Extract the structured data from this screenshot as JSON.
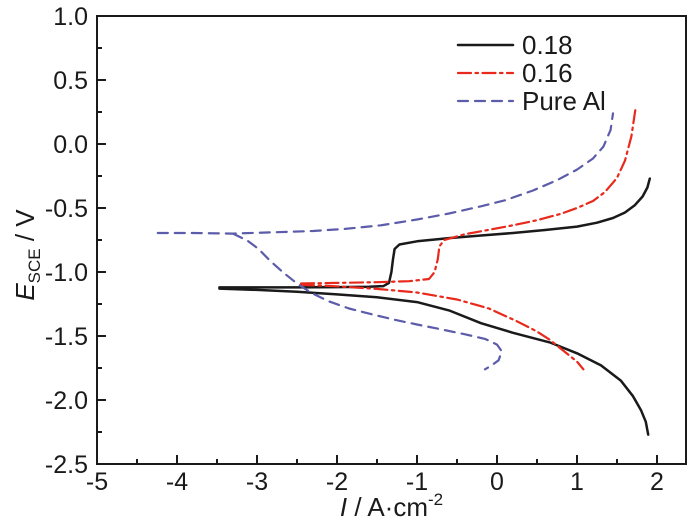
{
  "chart_data": {
    "type": "line",
    "title": "",
    "xlabel": {
      "prefix": "I",
      "unit": " / A·cm",
      "superscript": "-2"
    },
    "ylabel": {
      "prefix": "E",
      "subscript": "SCE",
      "unit": " / V"
    },
    "xlim": [
      -5,
      2.3625
    ],
    "ylim": [
      -2.5,
      1.0
    ],
    "grid": false,
    "legend_position": "upper right",
    "axis_color": "#1a1a1a",
    "x_major_ticks": [
      -5,
      -4,
      -3,
      -2,
      -1,
      0,
      1,
      2
    ],
    "x_tick_labels": [
      "-5",
      "-4",
      "-3",
      "-2",
      "-1",
      "0",
      "1",
      "2"
    ],
    "x_minor_ticks": [
      -4.5,
      -3.5,
      -2.5,
      -1.5,
      -0.5,
      0.5,
      1.5
    ],
    "y_major_ticks": [
      1.0,
      0.5,
      0.0,
      -0.5,
      -1.0,
      -1.5,
      -2.0,
      -2.5
    ],
    "y_tick_labels": [
      "1.0",
      "0.5",
      "0.0",
      "-0.5",
      "-1.0",
      "-1.5",
      "-2.0",
      "-2.5"
    ],
    "y_minor_ticks": [
      0.75,
      0.25,
      -0.25,
      -0.75,
      -1.25,
      -1.75,
      -2.25
    ],
    "series": [
      {
        "name": "0.18",
        "color": "#1a1a1a",
        "line_style": "solid",
        "width": 2.5,
        "branches": {
          "anodic": [
            [
              -3.47,
              -1.12
            ],
            [
              -3.0,
              -1.12
            ],
            [
              -2.5,
              -1.12
            ],
            [
              -2.0,
              -1.118
            ],
            [
              -1.6,
              -1.115
            ],
            [
              -1.42,
              -1.11
            ],
            [
              -1.35,
              -1.085
            ],
            [
              -1.32,
              -1.0
            ],
            [
              -1.3,
              -0.9
            ],
            [
              -1.28,
              -0.82
            ],
            [
              -1.22,
              -0.785
            ],
            [
              -1.0,
              -0.76
            ],
            [
              -0.6,
              -0.735
            ],
            [
              -0.2,
              -0.715
            ],
            [
              0.2,
              -0.695
            ],
            [
              0.6,
              -0.672
            ],
            [
              1.0,
              -0.645
            ],
            [
              1.25,
              -0.615
            ],
            [
              1.45,
              -0.578
            ],
            [
              1.6,
              -0.535
            ],
            [
              1.72,
              -0.48
            ],
            [
              1.82,
              -0.41
            ],
            [
              1.88,
              -0.34
            ],
            [
              1.91,
              -0.27
            ]
          ],
          "cathodic": [
            [
              -3.47,
              -1.13
            ],
            [
              -3.0,
              -1.14
            ],
            [
              -2.5,
              -1.155
            ],
            [
              -2.0,
              -1.175
            ],
            [
              -1.5,
              -1.198
            ],
            [
              -1.0,
              -1.235
            ],
            [
              -0.6,
              -1.3
            ],
            [
              -0.2,
              -1.4
            ],
            [
              0.2,
              -1.475
            ],
            [
              0.66,
              -1.55
            ],
            [
              1.0,
              -1.635
            ],
            [
              1.3,
              -1.73
            ],
            [
              1.55,
              -1.85
            ],
            [
              1.7,
              -1.97
            ],
            [
              1.8,
              -2.08
            ],
            [
              1.86,
              -2.17
            ],
            [
              1.89,
              -2.27
            ]
          ]
        }
      },
      {
        "name": "0.16",
        "color": "#e8291c",
        "line_style": "dash-dot",
        "width": 2.2,
        "branches": {
          "anodic": [
            [
              -2.45,
              -1.09
            ],
            [
              -2.0,
              -1.085
            ],
            [
              -1.5,
              -1.08
            ],
            [
              -1.1,
              -1.072
            ],
            [
              -0.85,
              -1.055
            ],
            [
              -0.78,
              -1.0
            ],
            [
              -0.74,
              -0.9
            ],
            [
              -0.72,
              -0.8
            ],
            [
              -0.66,
              -0.75
            ],
            [
              -0.4,
              -0.705
            ],
            [
              -0.1,
              -0.67
            ],
            [
              0.2,
              -0.635
            ],
            [
              0.5,
              -0.595
            ],
            [
              0.8,
              -0.545
            ],
            [
              1.0,
              -0.5
            ],
            [
              1.2,
              -0.445
            ],
            [
              1.35,
              -0.375
            ],
            [
              1.5,
              -0.265
            ],
            [
              1.6,
              -0.13
            ],
            [
              1.68,
              0.06
            ],
            [
              1.73,
              0.27
            ]
          ],
          "cathodic": [
            [
              -2.45,
              -1.1
            ],
            [
              -2.0,
              -1.112
            ],
            [
              -1.5,
              -1.132
            ],
            [
              -1.0,
              -1.16
            ],
            [
              -0.5,
              -1.215
            ],
            [
              -0.1,
              -1.285
            ],
            [
              0.25,
              -1.385
            ],
            [
              0.5,
              -1.465
            ],
            [
              0.66,
              -1.53
            ],
            [
              0.85,
              -1.625
            ],
            [
              1.0,
              -1.7
            ],
            [
              1.08,
              -1.76
            ]
          ]
        }
      },
      {
        "name": "Pure Al",
        "color": "#5c5cab",
        "line_style": "dashed",
        "width": 2.2,
        "branches": {
          "anodic": [
            [
              -4.24,
              -0.695
            ],
            [
              -3.8,
              -0.695
            ],
            [
              -3.3,
              -0.7
            ],
            [
              -2.8,
              -0.69
            ],
            [
              -2.3,
              -0.68
            ],
            [
              -1.9,
              -0.663
            ],
            [
              -1.45,
              -0.635
            ],
            [
              -1.0,
              -0.59
            ],
            [
              -0.6,
              -0.543
            ],
            [
              -0.2,
              -0.487
            ],
            [
              0.1,
              -0.44
            ],
            [
              0.45,
              -0.363
            ],
            [
              0.75,
              -0.283
            ],
            [
              1.0,
              -0.2
            ],
            [
              1.2,
              -0.113
            ],
            [
              1.33,
              -0.02
            ],
            [
              1.42,
              0.11
            ],
            [
              1.45,
              0.24
            ]
          ],
          "cathodic": [
            [
              -3.3,
              -0.7
            ],
            [
              -3.12,
              -0.755
            ],
            [
              -2.98,
              -0.82
            ],
            [
              -2.84,
              -0.91
            ],
            [
              -2.68,
              -1.0
            ],
            [
              -2.5,
              -1.09
            ],
            [
              -2.33,
              -1.16
            ],
            [
              -2.1,
              -1.23
            ],
            [
              -1.85,
              -1.285
            ],
            [
              -1.6,
              -1.325
            ],
            [
              -1.3,
              -1.37
            ],
            [
              -1.0,
              -1.41
            ],
            [
              -0.7,
              -1.448
            ],
            [
              -0.4,
              -1.487
            ],
            [
              -0.15,
              -1.523
            ],
            [
              0.0,
              -1.567
            ],
            [
              0.06,
              -1.62
            ],
            [
              0.02,
              -1.69
            ],
            [
              -0.08,
              -1.735
            ],
            [
              -0.15,
              -1.76
            ]
          ]
        }
      }
    ]
  }
}
